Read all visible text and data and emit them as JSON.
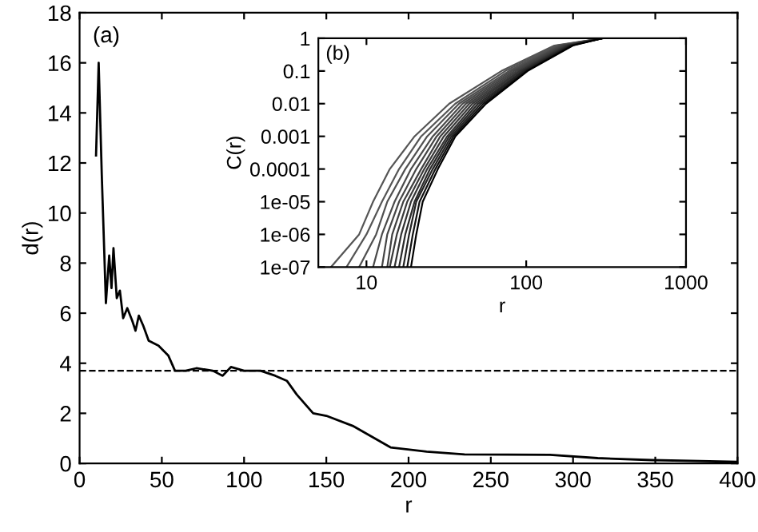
{
  "chart_data": [
    {
      "type": "line",
      "xlabel": "r",
      "ylabel": "d(r)",
      "annotations": [
        "(a)"
      ],
      "xlim": [
        0,
        400
      ],
      "ylim": [
        0,
        18
      ],
      "xticks": [
        0,
        50,
        100,
        150,
        200,
        250,
        300,
        350,
        400
      ],
      "yticks": [
        0,
        2,
        4,
        6,
        8,
        10,
        12,
        14,
        16,
        18
      ],
      "grid": false,
      "line_style": "solid",
      "ref_lines": [
        {
          "axis": "y",
          "value": 3.7,
          "line_style": "dashed",
          "color": "#000000"
        }
      ],
      "series": [
        {
          "color": "#000000",
          "x": [
            10,
            11.6,
            13.5,
            16,
            18,
            19.4,
            20.6,
            22.6,
            24.5,
            26.5,
            29,
            32,
            34,
            36,
            38.7,
            42,
            48,
            54,
            58,
            64.5,
            71,
            81,
            87,
            92,
            100,
            110,
            119,
            126,
            132,
            142,
            150,
            166,
            189,
            211,
            234,
            286,
            315,
            348,
            400
          ],
          "values": [
            12.3,
            16,
            11.5,
            6.4,
            8.3,
            7,
            8.6,
            6.6,
            6.9,
            5.8,
            6.2,
            5.7,
            5.3,
            5.9,
            5.5,
            4.9,
            4.7,
            4.3,
            3.7,
            3.7,
            3.8,
            3.7,
            3.5,
            3.85,
            3.7,
            3.7,
            3.5,
            3.3,
            2.75,
            2.0,
            1.9,
            1.5,
            0.64,
            0.47,
            0.36,
            0.34,
            0.21,
            0.13,
            0.06
          ]
        }
      ]
    },
    {
      "type": "line",
      "xlabel": "r",
      "ylabel": "C(r)",
      "annotations": [
        "(b)"
      ],
      "log": "xy",
      "xlim": [
        5,
        1000
      ],
      "ylim": [
        1e-07,
        1
      ],
      "xticks": [
        10,
        100,
        1000
      ],
      "yticks": [
        {
          "value": 1e-07,
          "label": "1e-07"
        },
        {
          "value": 1e-06,
          "label": "1e-06"
        },
        {
          "value": 1e-05,
          "label": "1e-05"
        },
        0.0001,
        0.001,
        0.01,
        0.1,
        1
      ],
      "grid": false,
      "line_style": "solid",
      "series": [
        {
          "color": "#555555",
          "x": [
            6,
            9,
            11,
            14,
            20,
            33,
            70,
            150,
            300
          ],
          "values": [
            1e-07,
            1e-06,
            1e-05,
            0.0001,
            0.001,
            0.01,
            0.1,
            0.6,
            1
          ]
        },
        {
          "color": "#555555",
          "x": [
            7.5,
            10,
            12.5,
            16,
            22,
            36,
            74,
            155,
            300
          ],
          "values": [
            1e-07,
            1e-06,
            1e-05,
            0.0001,
            0.001,
            0.01,
            0.1,
            0.6,
            1
          ]
        },
        {
          "color": "#505050",
          "x": [
            9,
            11.5,
            13.5,
            17.5,
            24,
            38,
            78,
            160,
            300
          ],
          "values": [
            1e-07,
            1e-06,
            1e-05,
            0.0001,
            0.001,
            0.01,
            0.1,
            0.6,
            1
          ]
        },
        {
          "color": "#4a4a4a",
          "x": [
            11,
            12.5,
            15,
            19,
            26,
            40,
            81,
            165,
            300
          ],
          "values": [
            1e-07,
            1e-06,
            1e-05,
            0.0001,
            0.001,
            0.01,
            0.1,
            0.6,
            1
          ]
        },
        {
          "color": "#454545",
          "x": [
            12.5,
            13.5,
            16,
            20.5,
            27.5,
            42,
            84,
            168,
            300
          ],
          "values": [
            1e-07,
            1e-06,
            1e-05,
            0.0001,
            0.001,
            0.01,
            0.1,
            0.6,
            1
          ]
        },
        {
          "color": "#404040",
          "x": [
            13.5,
            14.5,
            17,
            22,
            29,
            44,
            87,
            172,
            300
          ],
          "values": [
            1e-07,
            1e-06,
            1e-05,
            0.0001,
            0.001,
            0.01,
            0.1,
            0.6,
            1
          ]
        },
        {
          "color": "#3a3a3a",
          "x": [
            14,
            15.5,
            18,
            23,
            30.5,
            46,
            90,
            176,
            300
          ],
          "values": [
            1e-07,
            1e-06,
            1e-05,
            0.0001,
            0.001,
            0.01,
            0.1,
            0.6,
            1
          ]
        },
        {
          "color": "#333333",
          "x": [
            15,
            16.5,
            19,
            24,
            32,
            48,
            92,
            180,
            300
          ],
          "values": [
            1e-07,
            1e-06,
            1e-05,
            0.0001,
            0.001,
            0.01,
            0.1,
            0.6,
            1
          ]
        },
        {
          "color": "#2a2a2a",
          "x": [
            16,
            17.5,
            20,
            25,
            33,
            50,
            95,
            184,
            300
          ],
          "values": [
            1e-07,
            1e-06,
            1e-05,
            0.0001,
            0.001,
            0.01,
            0.1,
            0.6,
            1
          ]
        },
        {
          "color": "#222222",
          "x": [
            17,
            18.5,
            20.5,
            26,
            34,
            52,
            97,
            188,
            300
          ],
          "values": [
            1e-07,
            1e-06,
            1e-05,
            0.0001,
            0.001,
            0.01,
            0.1,
            0.6,
            1
          ]
        },
        {
          "color": "#111111",
          "x": [
            18,
            19.5,
            21.5,
            27,
            35,
            54,
            100,
            192,
            300
          ],
          "values": [
            1e-07,
            1e-06,
            1e-05,
            0.0001,
            0.001,
            0.01,
            0.1,
            0.6,
            1
          ]
        },
        {
          "color": "#000000",
          "x": [
            19,
            20.5,
            22.5,
            28,
            36,
            56,
            102,
            196,
            300
          ],
          "values": [
            1e-07,
            1e-06,
            1e-05,
            0.0001,
            0.001,
            0.01,
            0.1,
            0.6,
            1
          ]
        }
      ]
    }
  ]
}
